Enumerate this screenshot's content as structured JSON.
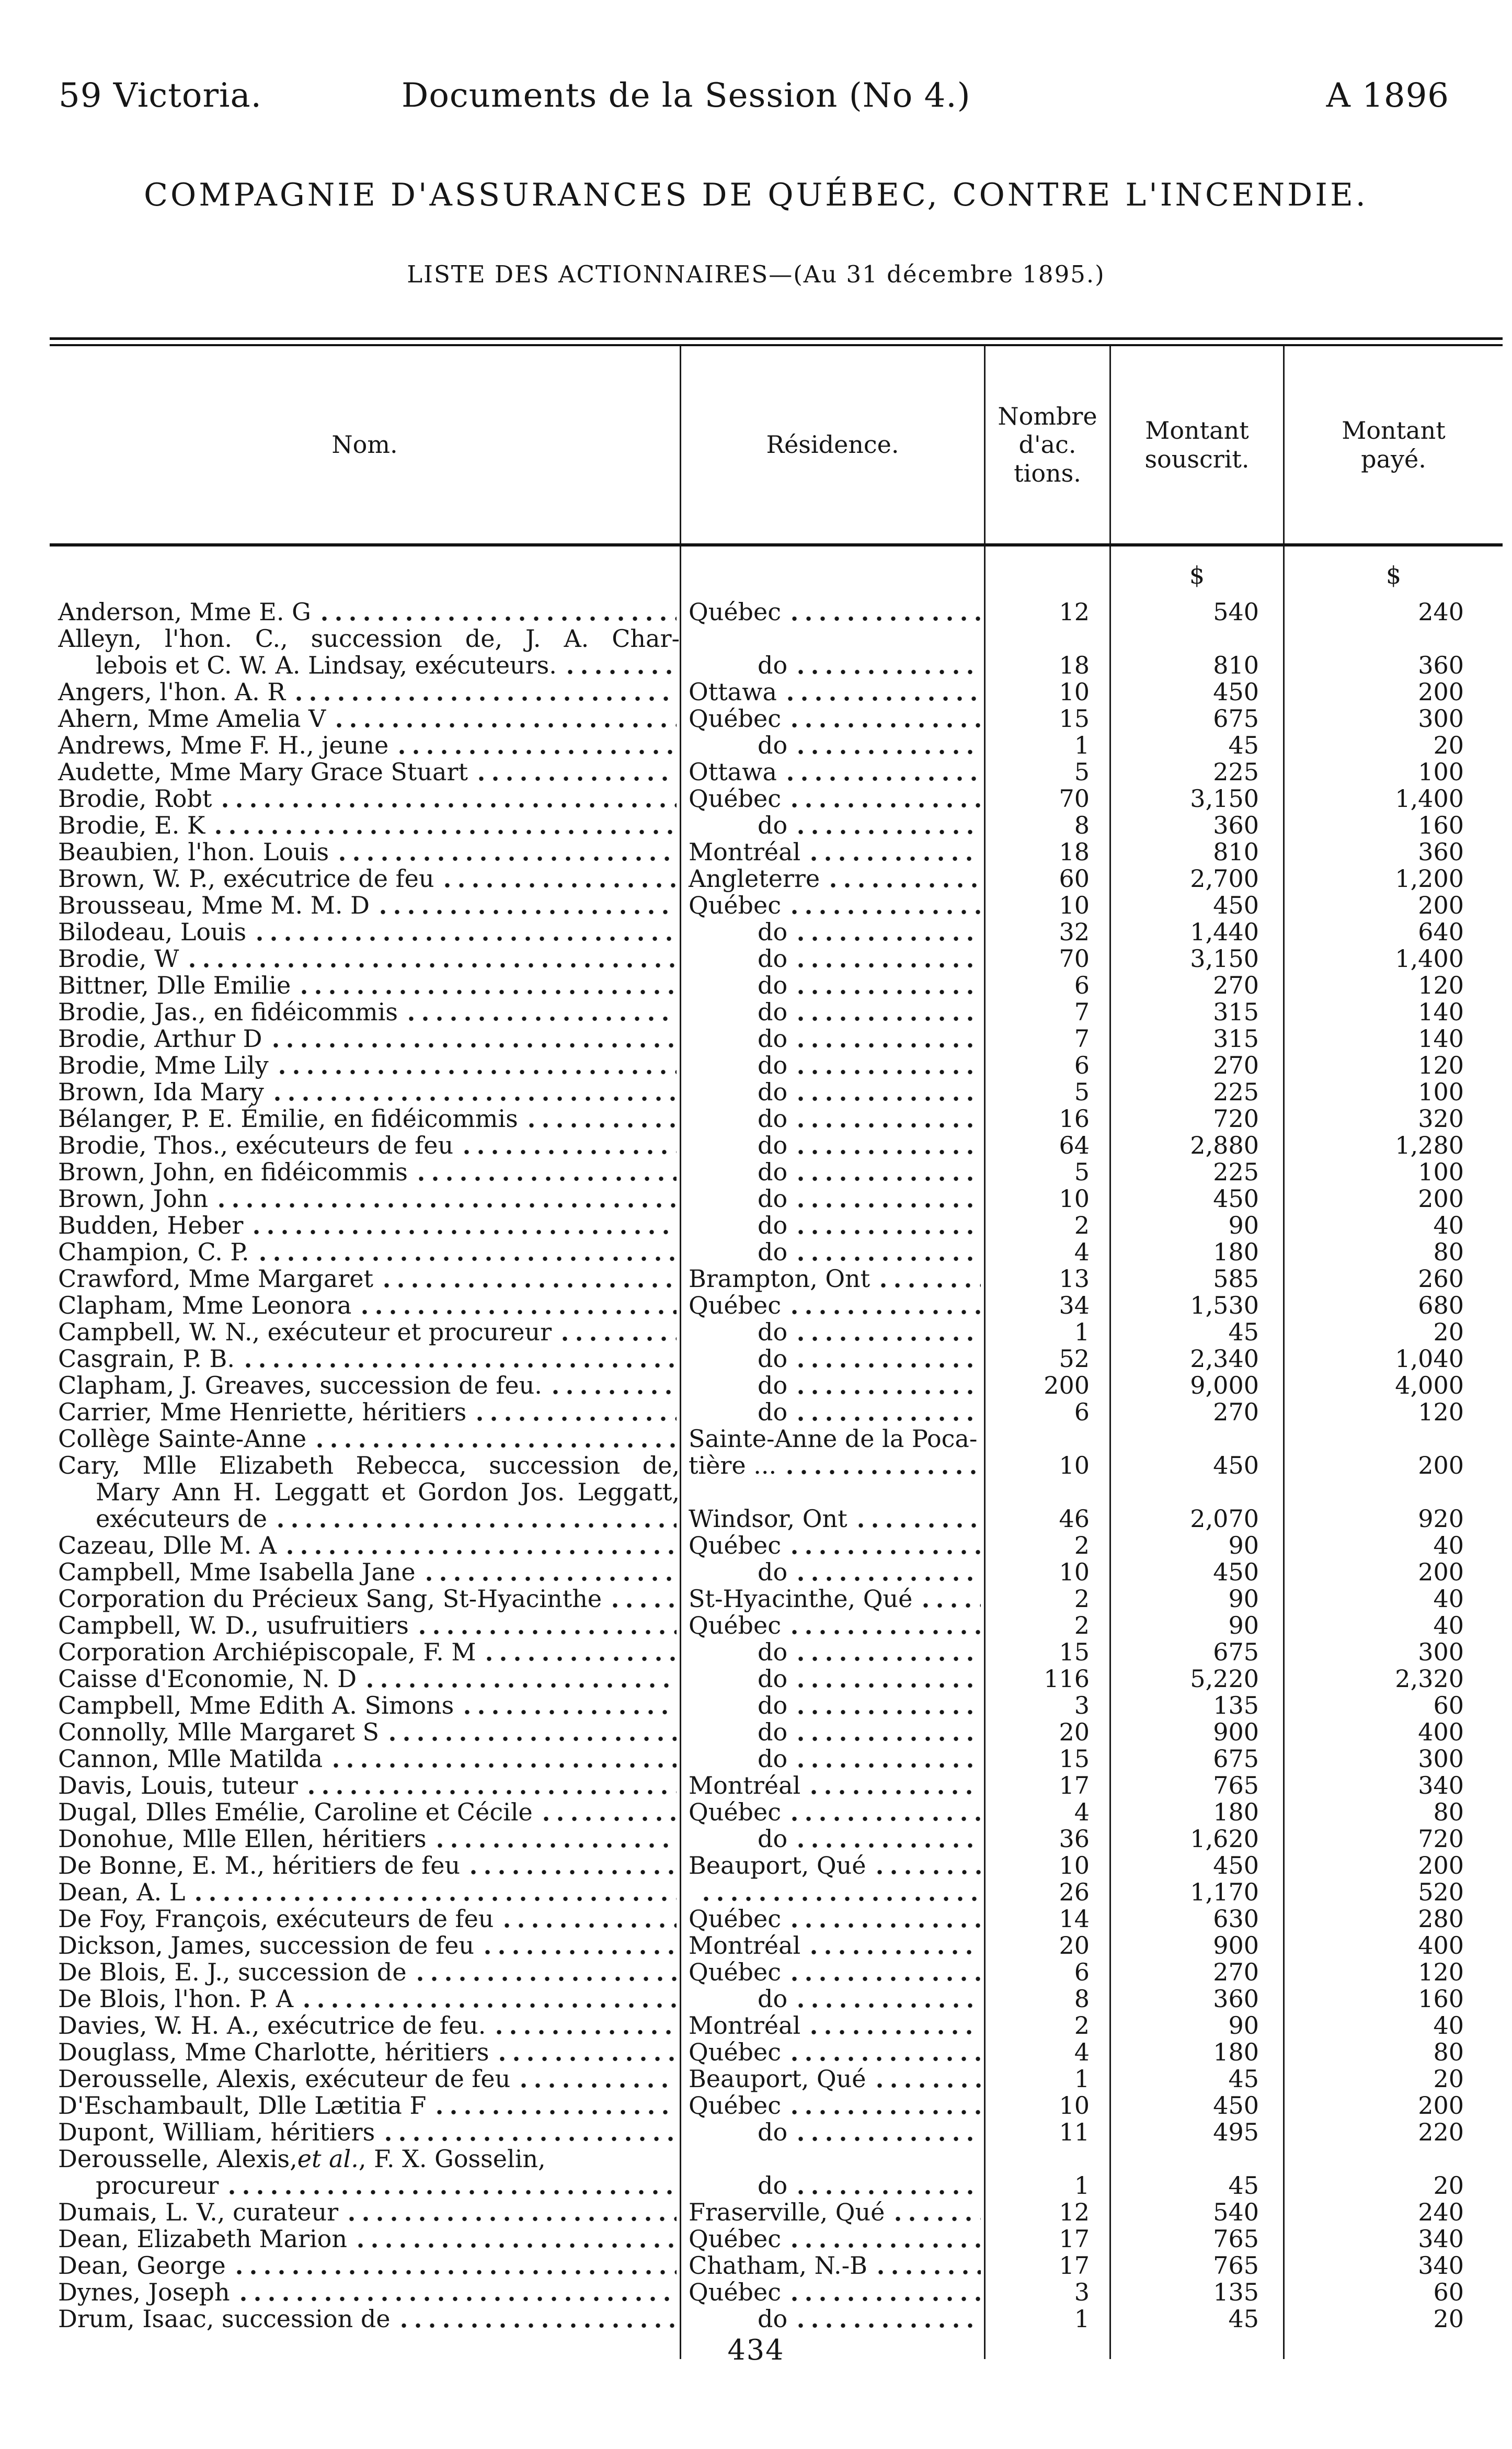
{
  "page_header": {
    "left": "59 Victoria.",
    "center": "Documents de la Session (No 4.)",
    "right": "A 1896"
  },
  "title": "COMPAGNIE D'ASSURANCES DE QUÉBEC, CONTRE L'INCENDIE.",
  "subtitle": "LISTE DES ACTIONNAIRES—(Au 31 décembre 1895.)",
  "page_number": "434",
  "table": {
    "columns": {
      "nom": "Nom.",
      "residence": "Résidence.",
      "actions": [
        "Nombre",
        "d'ac.",
        "tions."
      ],
      "souscrit": [
        "Montant",
        "souscrit."
      ],
      "paye": [
        "Montant",
        "payé."
      ]
    },
    "currency": "$",
    "rows": [
      {
        "n": "Anderson, Mme E. G",
        "nl": true,
        "r": "Québec",
        "rt": "p",
        "rl": true,
        "a": "12",
        "s": "540",
        "p": "240"
      },
      {
        "n": "Alleyn, l'hon. C., succession de, J. A. Char-",
        "nl": false,
        "r": "",
        "rt": "",
        "rl": false,
        "a": "",
        "s": "",
        "p": ""
      },
      {
        "n": "lebois et C. W. A. Lindsay, exécuteurs.",
        "i": 1,
        "nl": true,
        "r": "do",
        "rt": "d",
        "rl": true,
        "a": "18",
        "s": "810",
        "p": "360"
      },
      {
        "n": "Angers, l'hon. A. R",
        "nl": true,
        "r": "Ottawa",
        "rt": "p",
        "rl": true,
        "a": "10",
        "s": "450",
        "p": "200"
      },
      {
        "n": "Ahern, Mme Amelia V",
        "nl": true,
        "r": "Québec",
        "rt": "p",
        "rl": true,
        "a": "15",
        "s": "675",
        "p": "300"
      },
      {
        "n": "Andrews, Mme F. H., jeune",
        "nl": true,
        "r": "do",
        "rt": "d",
        "rl": true,
        "a": "1",
        "s": "45",
        "p": "20"
      },
      {
        "n": "Audette, Mme Mary Grace Stuart",
        "nl": true,
        "r": "Ottawa",
        "rt": "p",
        "rl": true,
        "a": "5",
        "s": "225",
        "p": "100"
      },
      {
        "n": "Brodie, Robt",
        "nl": true,
        "r": "Québec",
        "rt": "p",
        "rl": true,
        "a": "70",
        "s": "3,150",
        "p": "1,400"
      },
      {
        "n": "Brodie, E. K",
        "nl": true,
        "r": "do",
        "rt": "d",
        "rl": true,
        "a": "8",
        "s": "360",
        "p": "160"
      },
      {
        "n": "Beaubien, l'hon. Louis",
        "nl": true,
        "r": "Montréal",
        "rt": "p",
        "rl": true,
        "a": "18",
        "s": "810",
        "p": "360"
      },
      {
        "n": "Brown, W. P., exécutrice de feu",
        "nl": true,
        "r": "Angleterre",
        "rt": "p",
        "rl": true,
        "a": "60",
        "s": "2,700",
        "p": "1,200"
      },
      {
        "n": "Brousseau, Mme M. M. D",
        "nl": true,
        "r": "Québec",
        "rt": "p",
        "rl": true,
        "a": "10",
        "s": "450",
        "p": "200"
      },
      {
        "n": "Bilodeau, Louis",
        "nl": true,
        "r": "do",
        "rt": "d",
        "rl": true,
        "a": "32",
        "s": "1,440",
        "p": "640"
      },
      {
        "n": "Brodie, W",
        "nl": true,
        "r": "do",
        "rt": "d",
        "rl": true,
        "a": "70",
        "s": "3,150",
        "p": "1,400"
      },
      {
        "n": "Bittner, Dlle Emilie",
        "nl": true,
        "r": "do",
        "rt": "d",
        "rl": true,
        "a": "6",
        "s": "270",
        "p": "120"
      },
      {
        "n": "Brodie, Jas., en fidéicommis",
        "nl": true,
        "r": "do",
        "rt": "d",
        "rl": true,
        "a": "7",
        "s": "315",
        "p": "140"
      },
      {
        "n": "Brodie, Arthur D",
        "nl": true,
        "r": "do",
        "rt": "d",
        "rl": true,
        "a": "7",
        "s": "315",
        "p": "140"
      },
      {
        "n": "Brodie, Mme Lily",
        "nl": true,
        "r": "do",
        "rt": "d",
        "rl": true,
        "a": "6",
        "s": "270",
        "p": "120"
      },
      {
        "n": "Brown, Ida Mary",
        "nl": true,
        "r": "do",
        "rt": "d",
        "rl": true,
        "a": "5",
        "s": "225",
        "p": "100"
      },
      {
        "n": "Bélanger, P. E. Émilie, en fidéicommis",
        "nl": true,
        "r": "do",
        "rt": "d",
        "rl": true,
        "a": "16",
        "s": "720",
        "p": "320"
      },
      {
        "n": "Brodie, Thos., exécuteurs de feu",
        "nl": true,
        "r": "do",
        "rt": "d",
        "rl": true,
        "a": "64",
        "s": "2,880",
        "p": "1,280"
      },
      {
        "n": "Brown, John, en fidéicommis",
        "nl": true,
        "r": "do",
        "rt": "d",
        "rl": true,
        "a": "5",
        "s": "225",
        "p": "100"
      },
      {
        "n": "Brown, John",
        "nl": true,
        "r": "do",
        "rt": "d",
        "rl": true,
        "a": "10",
        "s": "450",
        "p": "200"
      },
      {
        "n": "Budden, Heber",
        "nl": true,
        "r": "do",
        "rt": "d",
        "rl": true,
        "a": "2",
        "s": "90",
        "p": "40"
      },
      {
        "n": "Champion, C. P.",
        "nl": true,
        "r": "do",
        "rt": "d",
        "rl": true,
        "a": "4",
        "s": "180",
        "p": "80"
      },
      {
        "n": "Crawford, Mme Margaret",
        "nl": true,
        "r": "Brampton, Ont",
        "rt": "p",
        "rl": true,
        "a": "13",
        "s": "585",
        "p": "260"
      },
      {
        "n": "Clapham, Mme Leonora",
        "nl": true,
        "r": "Québec",
        "rt": "p",
        "rl": true,
        "a": "34",
        "s": "1,530",
        "p": "680"
      },
      {
        "n": "Campbell, W. N., exécuteur et procureur",
        "nl": true,
        "r": "do",
        "rt": "d",
        "rl": true,
        "a": "1",
        "s": "45",
        "p": "20"
      },
      {
        "n": "Casgrain, P. B.",
        "nl": true,
        "r": "do",
        "rt": "d",
        "rl": true,
        "a": "52",
        "s": "2,340",
        "p": "1,040"
      },
      {
        "n": "Clapham, J. Greaves, succession de feu.",
        "nl": true,
        "r": "do",
        "rt": "d",
        "rl": true,
        "a": "200",
        "s": "9,000",
        "p": "4,000"
      },
      {
        "n": "Carrier, Mme Henriette, héritiers",
        "nl": true,
        "r": "do",
        "rt": "d",
        "rl": true,
        "a": "6",
        "s": "270",
        "p": "120"
      },
      {
        "n": "Collège Sainte-Anne",
        "nl": true,
        "r": "Sainte-Anne de la Poca-",
        "rt": "p",
        "rl": false,
        "a": "",
        "s": "",
        "p": ""
      },
      {
        "n": "Cary, Mlle Elizabeth Rebecca, succession de,",
        "nl": false,
        "r": "tière ...",
        "rt": "p",
        "rl": true,
        "a": "10",
        "s": "450",
        "p": "200"
      },
      {
        "n": "Mary Ann H. Leggatt et Gordon Jos. Leggatt,",
        "i": 1,
        "nl": false,
        "r": "",
        "rt": "",
        "rl": false,
        "a": "",
        "s": "",
        "p": ""
      },
      {
        "n": "exécuteurs de",
        "i": 1,
        "nl": true,
        "r": "Windsor, Ont",
        "rt": "p",
        "rl": true,
        "a": "46",
        "s": "2,070",
        "p": "920"
      },
      {
        "n": "Cazeau, Dlle M. A",
        "nl": true,
        "r": "Québec",
        "rt": "p",
        "rl": true,
        "a": "2",
        "s": "90",
        "p": "40"
      },
      {
        "n": "Campbell, Mme Isabella Jane",
        "nl": true,
        "r": "do",
        "rt": "d",
        "rl": true,
        "a": "10",
        "s": "450",
        "p": "200"
      },
      {
        "n": "Corporation du Précieux Sang, St-Hyacinthe",
        "nl": true,
        "r": "St-Hyacinthe, Qué",
        "rt": "p",
        "rl": true,
        "a": "2",
        "s": "90",
        "p": "40"
      },
      {
        "n": "Campbell, W. D., usufruitiers",
        "nl": true,
        "r": "Québec",
        "rt": "p",
        "rl": true,
        "a": "2",
        "s": "90",
        "p": "40"
      },
      {
        "n": "Corporation Archiépiscopale, F. M",
        "nl": true,
        "r": "do",
        "rt": "d",
        "rl": true,
        "a": "15",
        "s": "675",
        "p": "300"
      },
      {
        "n": "Caisse d'Economie, N. D",
        "nl": true,
        "r": "do",
        "rt": "d",
        "rl": true,
        "a": "116",
        "s": "5,220",
        "p": "2,320"
      },
      {
        "n": "Campbell, Mme Edith A. Simons",
        "nl": true,
        "r": "do",
        "rt": "d",
        "rl": true,
        "a": "3",
        "s": "135",
        "p": "60"
      },
      {
        "n": "Connolly, Mlle Margaret S",
        "nl": true,
        "r": "do",
        "rt": "d",
        "rl": true,
        "a": "20",
        "s": "900",
        "p": "400"
      },
      {
        "n": "Cannon, Mlle Matilda",
        "nl": true,
        "r": "do",
        "rt": "d",
        "rl": true,
        "a": "15",
        "s": "675",
        "p": "300"
      },
      {
        "n": "Davis, Louis, tuteur",
        "nl": true,
        "r": "Montréal",
        "rt": "p",
        "rl": true,
        "a": "17",
        "s": "765",
        "p": "340"
      },
      {
        "n": "Dugal, Dlles Emélie, Caroline et Cécile",
        "nl": true,
        "r": "Québec",
        "rt": "p",
        "rl": true,
        "a": "4",
        "s": "180",
        "p": "80"
      },
      {
        "n": "Donohue, Mlle Ellen, héritiers",
        "nl": true,
        "r": "do",
        "rt": "d",
        "rl": true,
        "a": "36",
        "s": "1,620",
        "p": "720"
      },
      {
        "n": "De Bonne, E. M., héritiers de feu",
        "nl": true,
        "r": "Beauport, Qué",
        "rt": "p",
        "rl": true,
        "a": "10",
        "s": "450",
        "p": "200"
      },
      {
        "n": "Dean, A. L",
        "nl": true,
        "r": "",
        "rt": "x",
        "rl": true,
        "a": "26",
        "s": "1,170",
        "p": "520"
      },
      {
        "n": "De Foy, François, exécuteurs de feu",
        "nl": true,
        "r": "Québec",
        "rt": "p",
        "rl": true,
        "a": "14",
        "s": "630",
        "p": "280"
      },
      {
        "n": "Dickson, James, succession de feu",
        "nl": true,
        "r": "Montréal",
        "rt": "p",
        "rl": true,
        "a": "20",
        "s": "900",
        "p": "400"
      },
      {
        "n": "De Blois, E. J., succession de",
        "nl": true,
        "r": "Québec",
        "rt": "p",
        "rl": true,
        "a": "6",
        "s": "270",
        "p": "120"
      },
      {
        "n": "De Blois, l'hon. P. A",
        "nl": true,
        "r": "do",
        "rt": "d",
        "rl": true,
        "a": "8",
        "s": "360",
        "p": "160"
      },
      {
        "n": "Davies, W. H. A., exécutrice de feu.",
        "nl": true,
        "r": "Montréal",
        "rt": "p",
        "rl": true,
        "a": "2",
        "s": "90",
        "p": "40"
      },
      {
        "n": "Douglass, Mme Charlotte, héritiers",
        "nl": true,
        "r": "Québec",
        "rt": "p",
        "rl": true,
        "a": "4",
        "s": "180",
        "p": "80"
      },
      {
        "n": "Derousselle, Alexis, exécuteur de feu",
        "nl": true,
        "r": "Beauport, Qué",
        "rt": "p",
        "rl": true,
        "a": "1",
        "s": "45",
        "p": "20"
      },
      {
        "n": "D'Eschambault, Dlle Lætitia F",
        "nl": true,
        "r": "Québec",
        "rt": "p",
        "rl": true,
        "a": "10",
        "s": "450",
        "p": "200"
      },
      {
        "n": "Dupont, William, héritiers",
        "nl": true,
        "r": "do",
        "rt": "d",
        "rl": true,
        "a": "11",
        "s": "495",
        "p": "220"
      },
      {
        "n_pre": "Derousselle, Alexis, ",
        "n_it": "et al.",
        "n_post": ", F. X. Gosselin,",
        "nl": false,
        "r": "",
        "rt": "",
        "rl": false,
        "a": "",
        "s": "",
        "p": ""
      },
      {
        "n": "procureur",
        "i": 1,
        "nl": true,
        "r": "do",
        "rt": "d",
        "rl": true,
        "a": "1",
        "s": "45",
        "p": "20"
      },
      {
        "n": "Dumais, L. V., curateur",
        "nl": true,
        "r": "Fraserville, Qué",
        "rt": "p",
        "rl": true,
        "a": "12",
        "s": "540",
        "p": "240"
      },
      {
        "n": "Dean, Elizabeth Marion",
        "nl": true,
        "r": "Québec",
        "rt": "p",
        "rl": true,
        "a": "17",
        "s": "765",
        "p": "340"
      },
      {
        "n": "Dean, George",
        "nl": true,
        "r": "Chatham, N.-B",
        "rt": "p",
        "rl": true,
        "a": "17",
        "s": "765",
        "p": "340"
      },
      {
        "n": "Dynes, Joseph",
        "nl": true,
        "r": "Québec",
        "rt": "p",
        "rl": true,
        "a": "3",
        "s": "135",
        "p": "60"
      },
      {
        "n": "Drum, Isaac, succession de",
        "nl": true,
        "r": "do",
        "rt": "d",
        "rl": true,
        "a": "1",
        "s": "45",
        "p": "20"
      }
    ]
  }
}
